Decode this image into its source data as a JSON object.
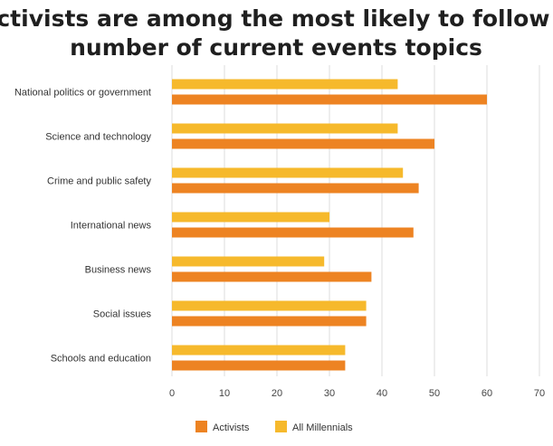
{
  "chart_data": {
    "type": "bar",
    "orientation": "horizontal",
    "title": "Activists are among the most likely to follow a number of current events topics",
    "title_lines": [
      "Activists are among the most likely to follow a",
      "number of current events topics"
    ],
    "categories": [
      "National politics or government",
      "Science and technology",
      "Crime and public safety",
      "International news",
      "Business news",
      "Social issues",
      "Schools and education"
    ],
    "series": [
      {
        "name": "All Millennials",
        "color": "#f6b92c",
        "values": [
          43,
          43,
          44,
          30,
          29,
          37,
          33
        ]
      },
      {
        "name": "Activists",
        "color": "#ed8322",
        "values": [
          60,
          50,
          47,
          46,
          38,
          37,
          33
        ]
      }
    ],
    "xlim": [
      0,
      70
    ],
    "xticks": [
      0,
      10,
      20,
      30,
      40,
      50,
      60,
      70
    ],
    "xlabel": "",
    "ylabel": "",
    "grid": true,
    "legend": {
      "position": "bottom-center",
      "order": [
        "Activists",
        "All Millennials"
      ]
    }
  }
}
